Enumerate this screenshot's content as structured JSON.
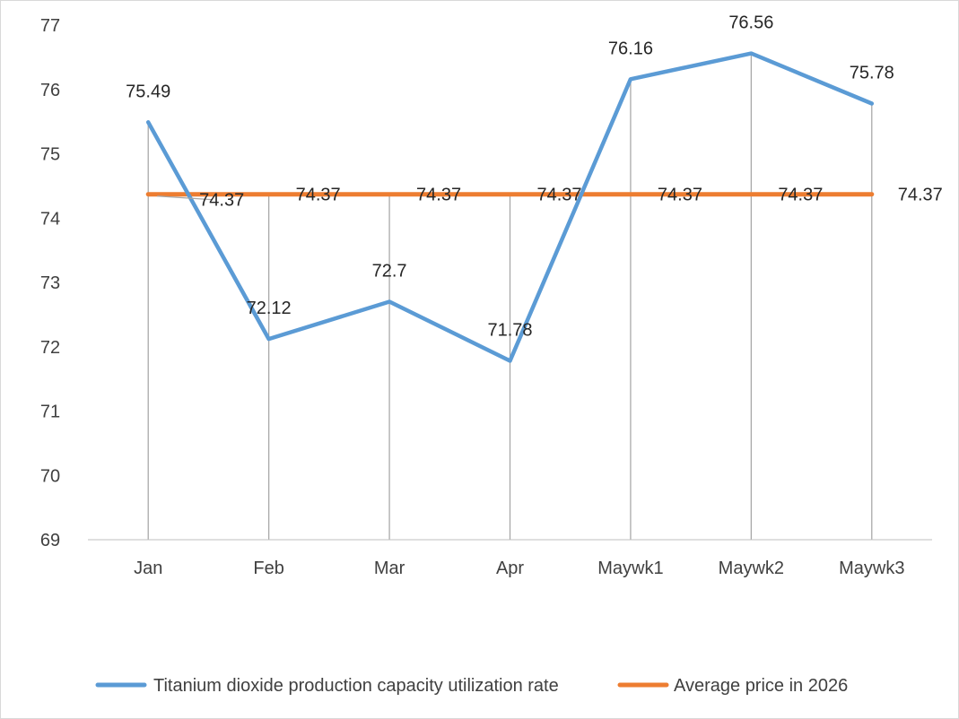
{
  "chart_data": {
    "type": "line",
    "categories": [
      "Jan",
      "Feb",
      "Mar",
      "Apr",
      "Maywk1",
      "Maywk2",
      "Maywk3"
    ],
    "series": [
      {
        "name": "Titanium dioxide production capacity utilization rate",
        "values": [
          75.49,
          72.12,
          72.7,
          71.78,
          76.16,
          76.56,
          75.78
        ],
        "labels": [
          "75.49",
          "72.12",
          "72.7",
          "71.78",
          "76.16",
          "76.56",
          "75.78"
        ],
        "color": "#5b9bd5"
      },
      {
        "name": "Average price in 2026",
        "values": [
          74.37,
          74.37,
          74.37,
          74.37,
          74.37,
          74.37,
          74.37
        ],
        "labels": [
          "74.37",
          "74.37",
          "74.37",
          "74.37",
          "74.37",
          "74.37",
          "74.37"
        ],
        "color": "#ed7d31"
      }
    ],
    "ylim": [
      69,
      77
    ],
    "yticks": [
      "69",
      "70",
      "71",
      "72",
      "73",
      "74",
      "75",
      "76",
      "77"
    ],
    "drop_lines": true,
    "grid": false,
    "legend_position": "bottom",
    "xlabel": "",
    "ylabel": "",
    "title": ""
  }
}
